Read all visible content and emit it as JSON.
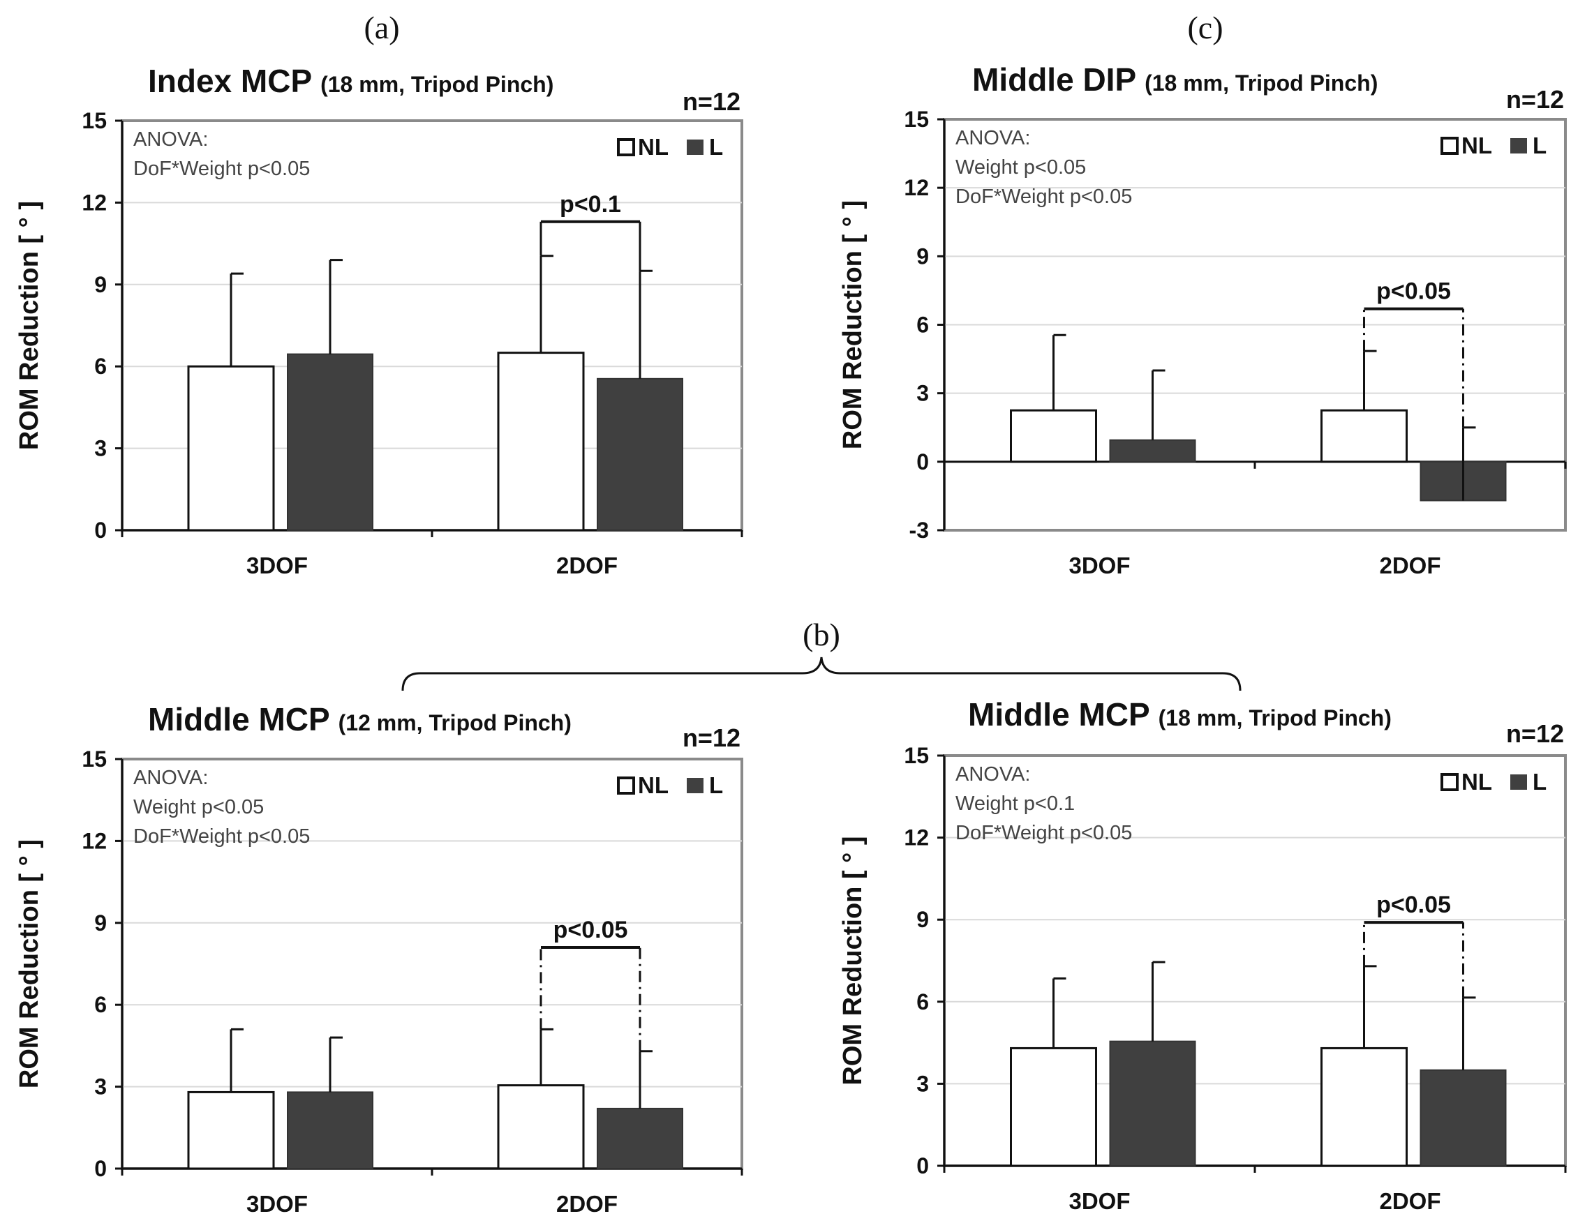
{
  "figure": {
    "panel_labels": {
      "a": "(a)",
      "b": "(b)",
      "c": "(c)"
    }
  },
  "chart_data": [
    {
      "id": "a",
      "type": "bar",
      "title": "Index MCP",
      "subtitle": "(18 mm, Tripod Pinch)",
      "n_label": "n=12",
      "ylabel": "ROM Reduction  [ ° ]",
      "categories": [
        "3DOF",
        "2DOF"
      ],
      "ylim": [
        0,
        15
      ],
      "yticks": [
        "0",
        "3",
        "6",
        "9",
        "12",
        "15"
      ],
      "grid": true,
      "legend": {
        "position": "top-right",
        "entries": [
          "NL",
          "L"
        ]
      },
      "series": [
        {
          "name": "NL",
          "values": [
            6.0,
            6.5
          ],
          "errors": [
            3.4,
            3.55
          ],
          "color": "#ffffff"
        },
        {
          "name": "L",
          "values": [
            6.45,
            5.55
          ],
          "errors": [
            3.45,
            3.95
          ],
          "color": "#404040"
        }
      ],
      "anova": [
        "ANOVA:",
        "DoF*Weight p<0.05"
      ],
      "significance": {
        "category": "2DOF",
        "label": "p<0.1",
        "level": 11.3,
        "dashed": false
      }
    },
    {
      "id": "c",
      "type": "bar",
      "title": "Middle DIP",
      "subtitle": "(18 mm, Tripod Pinch)",
      "n_label": "n=12",
      "ylabel": "ROM Reduction  [ ° ]",
      "categories": [
        "3DOF",
        "2DOF"
      ],
      "ylim": [
        -3,
        15
      ],
      "yticks": [
        "-3",
        "0",
        "3",
        "6",
        "9",
        "12",
        "15"
      ],
      "grid": true,
      "legend": {
        "position": "top-right",
        "entries": [
          "NL",
          "L"
        ]
      },
      "series": [
        {
          "name": "NL",
          "values": [
            2.25,
            2.25
          ],
          "errors": [
            3.3,
            2.6
          ],
          "color": "#ffffff"
        },
        {
          "name": "L",
          "values": [
            0.95,
            -1.7
          ],
          "errors": [
            3.05,
            3.2
          ],
          "color": "#404040"
        }
      ],
      "anova": [
        "ANOVA:",
        "Weight p<0.05",
        "DoF*Weight p<0.05"
      ],
      "significance": {
        "category": "2DOF",
        "label": "p<0.05",
        "level": 6.7,
        "dashed": true
      }
    },
    {
      "id": "b1",
      "type": "bar",
      "title": "Middle MCP",
      "subtitle": "(12 mm, Tripod Pinch)",
      "n_label": "n=12",
      "ylabel": "ROM Reduction  [ ° ]",
      "categories": [
        "3DOF",
        "2DOF"
      ],
      "ylim": [
        0,
        15
      ],
      "yticks": [
        "0",
        "3",
        "6",
        "9",
        "12",
        "15"
      ],
      "grid": true,
      "legend": {
        "position": "top-right",
        "entries": [
          "NL",
          "L"
        ]
      },
      "series": [
        {
          "name": "NL",
          "values": [
            2.8,
            3.05
          ],
          "errors": [
            2.3,
            2.05
          ],
          "color": "#ffffff"
        },
        {
          "name": "L",
          "values": [
            2.8,
            2.2
          ],
          "errors": [
            2.0,
            2.1
          ],
          "color": "#404040"
        }
      ],
      "anova": [
        "ANOVA:",
        "Weight p<0.05",
        "DoF*Weight p<0.05"
      ],
      "significance": {
        "category": "2DOF",
        "label": "p<0.05",
        "level": 8.1,
        "dashed": true
      }
    },
    {
      "id": "b2",
      "type": "bar",
      "title": "Middle MCP",
      "subtitle": "(18 mm, Tripod Pinch)",
      "n_label": "n=12",
      "ylabel": "ROM Reduction  [ ° ]",
      "categories": [
        "3DOF",
        "2DOF"
      ],
      "ylim": [
        0,
        15
      ],
      "yticks": [
        "0",
        "3",
        "6",
        "9",
        "12",
        "15"
      ],
      "grid": true,
      "legend": {
        "position": "top-right",
        "entries": [
          "NL",
          "L"
        ]
      },
      "series": [
        {
          "name": "NL",
          "values": [
            4.3,
            4.3
          ],
          "errors": [
            2.55,
            3.0
          ],
          "color": "#ffffff"
        },
        {
          "name": "L",
          "values": [
            4.55,
            3.5
          ],
          "errors": [
            2.9,
            2.65
          ],
          "color": "#404040"
        }
      ],
      "anova": [
        "ANOVA:",
        "Weight p<0.1",
        "DoF*Weight p<0.05"
      ],
      "significance": {
        "category": "2DOF",
        "label": "p<0.05",
        "level": 8.9,
        "dashed": true
      }
    }
  ]
}
